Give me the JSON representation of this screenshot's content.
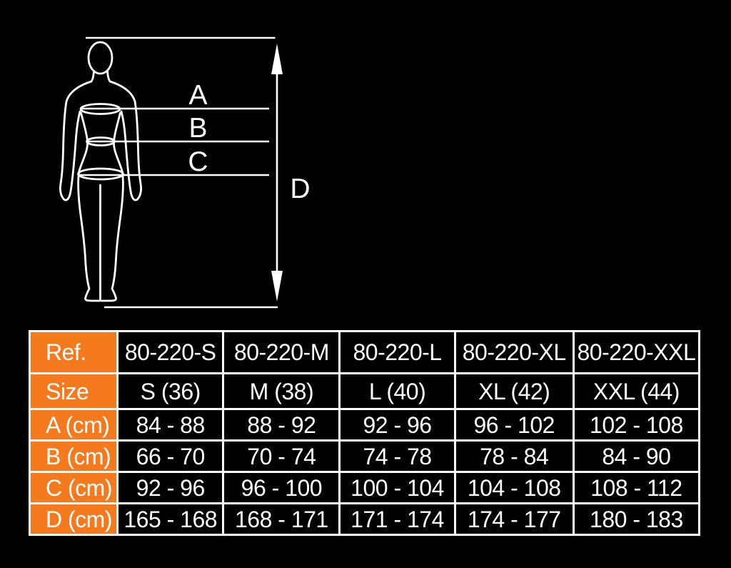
{
  "colors": {
    "background": "#000000",
    "accent_orange": "#F5791D",
    "line_white": "#FFFFFF"
  },
  "diagram": {
    "label_a": "A",
    "label_b": "B",
    "label_c": "C",
    "label_d": "D"
  },
  "size_table": {
    "rows": [
      {
        "header": "Ref.",
        "values": [
          "80-220-S",
          "80-220-M",
          "80-220-L",
          "80-220-XL",
          "80-220-XXL"
        ]
      },
      {
        "header": "Size",
        "values": [
          "S (36)",
          "M (38)",
          "L (40)",
          "XL (42)",
          "XXL (44)"
        ]
      },
      {
        "header": "A (cm)",
        "values": [
          "84 - 88",
          "88 - 92",
          "92 - 96",
          "96 - 102",
          "102 - 108"
        ]
      },
      {
        "header": "B (cm)",
        "values": [
          "66 - 70",
          "70 - 74",
          "74 - 78",
          "78 - 84",
          "84 - 90"
        ]
      },
      {
        "header": "C (cm)",
        "values": [
          "92 - 96",
          "96 - 100",
          "100 - 104",
          "104 - 108",
          "108 - 112"
        ]
      },
      {
        "header": "D (cm)",
        "values": [
          "165 - 168",
          "168 - 171",
          "171 - 174",
          "174 - 177",
          "180 - 183"
        ]
      }
    ]
  }
}
